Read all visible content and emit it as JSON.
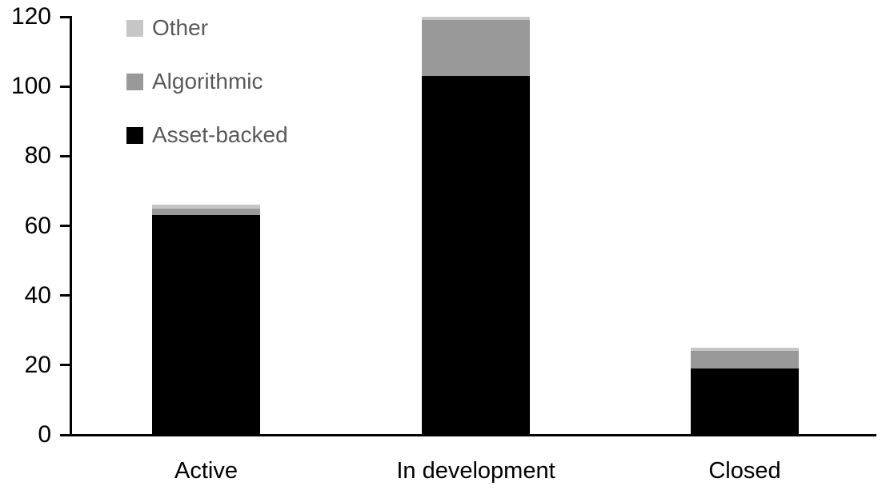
{
  "chart_data": {
    "type": "bar",
    "stacked": true,
    "title": "",
    "xlabel": "",
    "ylabel": "",
    "categories": [
      "Active",
      "In development",
      "Closed"
    ],
    "series": [
      {
        "name": "Asset-backed",
        "color": "#000000",
        "values": [
          63,
          103,
          19
        ]
      },
      {
        "name": "Algorithmic",
        "color": "#999999",
        "values": [
          2,
          16,
          5
        ]
      },
      {
        "name": "Other",
        "color": "#c6c6c6",
        "values": [
          1,
          1,
          1
        ]
      }
    ],
    "totals": [
      66,
      120,
      25
    ],
    "ylim": [
      0,
      120
    ],
    "yticks": [
      0,
      20,
      40,
      60,
      80,
      100,
      120
    ],
    "grid": false,
    "legend_position": "top-left",
    "legend_order": [
      "Other",
      "Algorithmic",
      "Asset-backed"
    ],
    "axis_color": "#000000",
    "legend_text_color": "#595959",
    "background_color": "#ffffff"
  }
}
